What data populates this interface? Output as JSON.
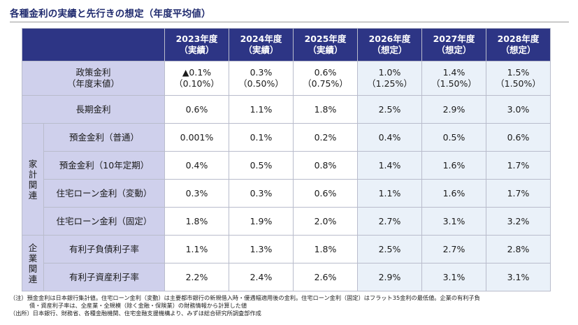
{
  "title": "各種金利の実績と先行きの想定（年度平均値）",
  "header": [
    {
      "year": "2023年度",
      "kind": "（実績）"
    },
    {
      "year": "2024年度",
      "kind": "（実績）"
    },
    {
      "year": "2025年度",
      "kind": "（実績）"
    },
    {
      "year": "2026年度",
      "kind": "（想定）"
    },
    {
      "year": "2027年度",
      "kind": "（想定）"
    },
    {
      "year": "2028年度",
      "kind": "（想定）"
    }
  ],
  "rows": {
    "policy": {
      "label1": "政策金利",
      "label2": "（年度末値）",
      "values": [
        "▲0.1%",
        "0.3%",
        "0.6%",
        "1.0%",
        "1.4%",
        "1.5%"
      ],
      "sub": [
        "（0.10%）",
        "（0.50%）",
        "（0.75%）",
        "（1.25%）",
        "（1.50%）",
        "（1.50%）"
      ]
    },
    "long": {
      "label": "長期金利",
      "values": [
        "0.6%",
        "1.1%",
        "1.8%",
        "2.5%",
        "2.9%",
        "3.0%"
      ]
    },
    "household_group": [
      "家",
      "計",
      "関",
      "連"
    ],
    "household": [
      {
        "label": "預金金利（普通）",
        "values": [
          "0.001%",
          "0.1%",
          "0.2%",
          "0.4%",
          "0.5%",
          "0.6%"
        ]
      },
      {
        "label": "預金金利（10年定期）",
        "values": [
          "0.4%",
          "0.5%",
          "0.8%",
          "1.4%",
          "1.6%",
          "1.7%"
        ]
      },
      {
        "label": "住宅ローン金利（変動）",
        "values": [
          "0.3%",
          "0.3%",
          "0.6%",
          "1.1%",
          "1.6%",
          "1.7%"
        ]
      },
      {
        "label": "住宅ローン金利（固定）",
        "values": [
          "1.8%",
          "1.9%",
          "2.0%",
          "2.7%",
          "3.1%",
          "3.2%"
        ]
      }
    ],
    "corp_group": [
      "企",
      "業",
      "関",
      "連"
    ],
    "corp": [
      {
        "label": "有利子負債利子率",
        "values": [
          "1.1%",
          "1.3%",
          "1.8%",
          "2.5%",
          "2.7%",
          "2.8%"
        ]
      },
      {
        "label": "有利子資産利子率",
        "values": [
          "2.2%",
          "2.4%",
          "2.6%",
          "2.9%",
          "3.1%",
          "3.1%"
        ]
      }
    ]
  },
  "notes": {
    "line1": "（注）預金金利は日本銀行集計値。住宅ローン金利（変動）は主要都市銀行の新規借入時・優遇幅適用後の金利。住宅ローン金利（固定）はフラット35金利の最低値。企業の有利子負",
    "line2": "債・資産利子率は、全産業・全規模（除く金融・保険業）の財務情報から計算した値",
    "line3": "（出所）日本銀行、財務省、各種金融機関、住宅金融支援機構より、みずほ総合研究所調査部作成"
  }
}
